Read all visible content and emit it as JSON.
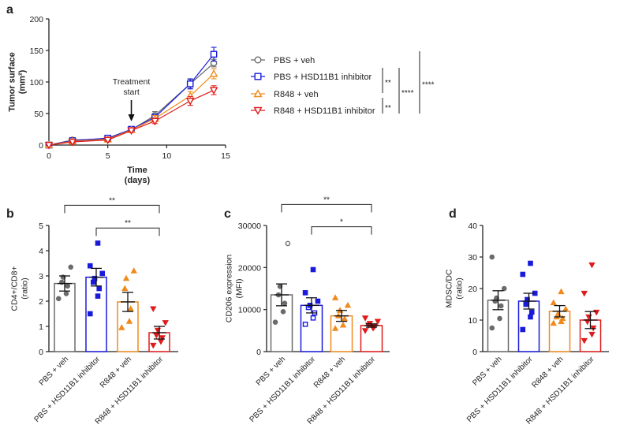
{
  "colors": {
    "PBS + veh": "#6b6b6b",
    "PBS + HSD11B1 inhibitor": "#1a1adb",
    "R848 + veh": "#f08a1c",
    "R848 + HSD11B1 inhibitor": "#e01b1b",
    "axis": "#222222"
  },
  "markers": {
    "PBS + veh": "circle",
    "PBS + HSD11B1 inhibitor": "square",
    "R848 + veh": "triangle",
    "R848 + HSD11B1 inhibitor": "triangle-down"
  },
  "chart_data": [
    {
      "panel": "a",
      "type": "line",
      "xlabel": [
        "Time",
        "(days)"
      ],
      "ylabel": [
        "Tumor surface",
        "(mm²)"
      ],
      "xlim": [
        0,
        15
      ],
      "ylim": [
        0,
        200
      ],
      "xticks": [
        0,
        5,
        10,
        15
      ],
      "yticks": [
        0,
        50,
        100,
        150,
        200
      ],
      "annotation": {
        "lines": [
          "Treatment",
          "start"
        ],
        "x": 7
      },
      "x": [
        0,
        2,
        5,
        7,
        9,
        12,
        14
      ],
      "series": [
        {
          "name": "PBS + veh",
          "values": [
            0,
            8,
            10,
            24,
            47,
            97,
            130
          ],
          "err": [
            1,
            2,
            2,
            2,
            6,
            7,
            6
          ]
        },
        {
          "name": "PBS + HSD11B1 inhibitor",
          "values": [
            0,
            7,
            11,
            25,
            44,
            97,
            144
          ],
          "err": [
            1,
            2,
            2,
            2,
            5,
            8,
            11
          ]
        },
        {
          "name": "R848 + veh",
          "values": [
            0,
            6,
            9,
            24,
            42,
            78,
            113
          ],
          "err": [
            1,
            2,
            2,
            2,
            5,
            7,
            8
          ]
        },
        {
          "name": "R848 + HSD11B1 inhibitor",
          "values": [
            0,
            5,
            8,
            23,
            38,
            70,
            87
          ],
          "err": [
            1,
            2,
            2,
            2,
            4,
            7,
            7
          ]
        }
      ],
      "significance": [
        {
          "label": "**",
          "from": "PBS + HSD11B1 inhibitor",
          "to": "R848 + veh"
        },
        {
          "label": "**",
          "from": "R848 + veh",
          "to": "R848 + HSD11B1 inhibitor"
        },
        {
          "label": "****",
          "from": "PBS + HSD11B1 inhibitor",
          "to": "R848 + HSD11B1 inhibitor"
        },
        {
          "label": "****",
          "from": "PBS + veh",
          "to": "R848 + HSD11B1 inhibitor"
        }
      ]
    },
    {
      "panel": "b",
      "type": "bar",
      "ylabel": [
        "CD4+/CD8+",
        "(ratio)"
      ],
      "ylim": [
        0,
        5
      ],
      "yticks": [
        0,
        1,
        2,
        3,
        4,
        5
      ],
      "categories": [
        "PBS + veh",
        "PBS + HSD11B1 inhibitor",
        "R848 + veh",
        "R848 + HSD11B1 inhibitor"
      ],
      "means": [
        2.7,
        2.95,
        1.97,
        0.75
      ],
      "sem": [
        0.3,
        0.35,
        0.38,
        0.25
      ],
      "points": [
        [
          2.1,
          2.3,
          2.6,
          2.75,
          2.95,
          3.35
        ],
        [
          1.5,
          2.2,
          2.5,
          2.75,
          2.9,
          3.1,
          3.4,
          4.3
        ],
        [
          0.95,
          1.2,
          1.7,
          2.5,
          2.9,
          3.2
        ],
        [
          0.25,
          0.4,
          0.55,
          0.65,
          0.85,
          1.15,
          1.7
        ]
      ],
      "significance": [
        {
          "label": "**",
          "from": 0,
          "to": 3,
          "y": 5.8
        },
        {
          "label": "**",
          "from": 1,
          "to": 3,
          "y": 4.9
        }
      ]
    },
    {
      "panel": "c",
      "type": "bar",
      "ylabel": [
        "CD206 expression",
        "(MFI)"
      ],
      "ylim": [
        0,
        30000
      ],
      "yticks": [
        0,
        10000,
        20000,
        30000
      ],
      "categories": [
        "PBS + veh",
        "PBS + HSD11B1 inhibitor",
        "R848 + veh",
        "R848 + HSD11B1 inhibitor"
      ],
      "means": [
        13500,
        11000,
        8500,
        6200
      ],
      "sem": [
        2600,
        1800,
        1300,
        400
      ],
      "points": [
        [
          7000,
          9500,
          11500,
          13500,
          15500,
          25700
        ],
        [
          6500,
          8000,
          9200,
          10500,
          11000,
          12000,
          14000,
          19500
        ],
        [
          5500,
          6300,
          7800,
          8500,
          9800,
          11000,
          12800
        ],
        [
          5000,
          5600,
          6000,
          6300,
          6700,
          7200,
          8000
        ]
      ],
      "significance": [
        {
          "label": "**",
          "from": 0,
          "to": 3,
          "y": 35000
        },
        {
          "label": "*",
          "from": 1,
          "to": 3,
          "y": 29700
        }
      ]
    },
    {
      "panel": "d",
      "type": "bar",
      "ylabel": [
        "MDSC/DC",
        "(ratio)"
      ],
      "ylim": [
        0,
        40
      ],
      "yticks": [
        0,
        10,
        20,
        30,
        40
      ],
      "categories": [
        "PBS + veh",
        "PBS + HSD11B1 inhibitor",
        "R848 + veh",
        "R848 + HSD11B1 inhibitor"
      ],
      "means": [
        16.3,
        16.0,
        12.8,
        10.0
      ],
      "sem": [
        3.0,
        2.5,
        1.8,
        2.7
      ],
      "points": [
        [
          7.5,
          10.5,
          14.5,
          16.0,
          17.0,
          20.0,
          30.0
        ],
        [
          7.0,
          11.0,
          12.5,
          15.0,
          16.5,
          18.5,
          24.5,
          28.0
        ],
        [
          9.0,
          9.5,
          10.5,
          11.0,
          12.0,
          13.5,
          15.5,
          19.0
        ],
        [
          3.5,
          5.5,
          7.5,
          9.5,
          11.0,
          12.5,
          18.5,
          27.5
        ]
      ]
    }
  ]
}
